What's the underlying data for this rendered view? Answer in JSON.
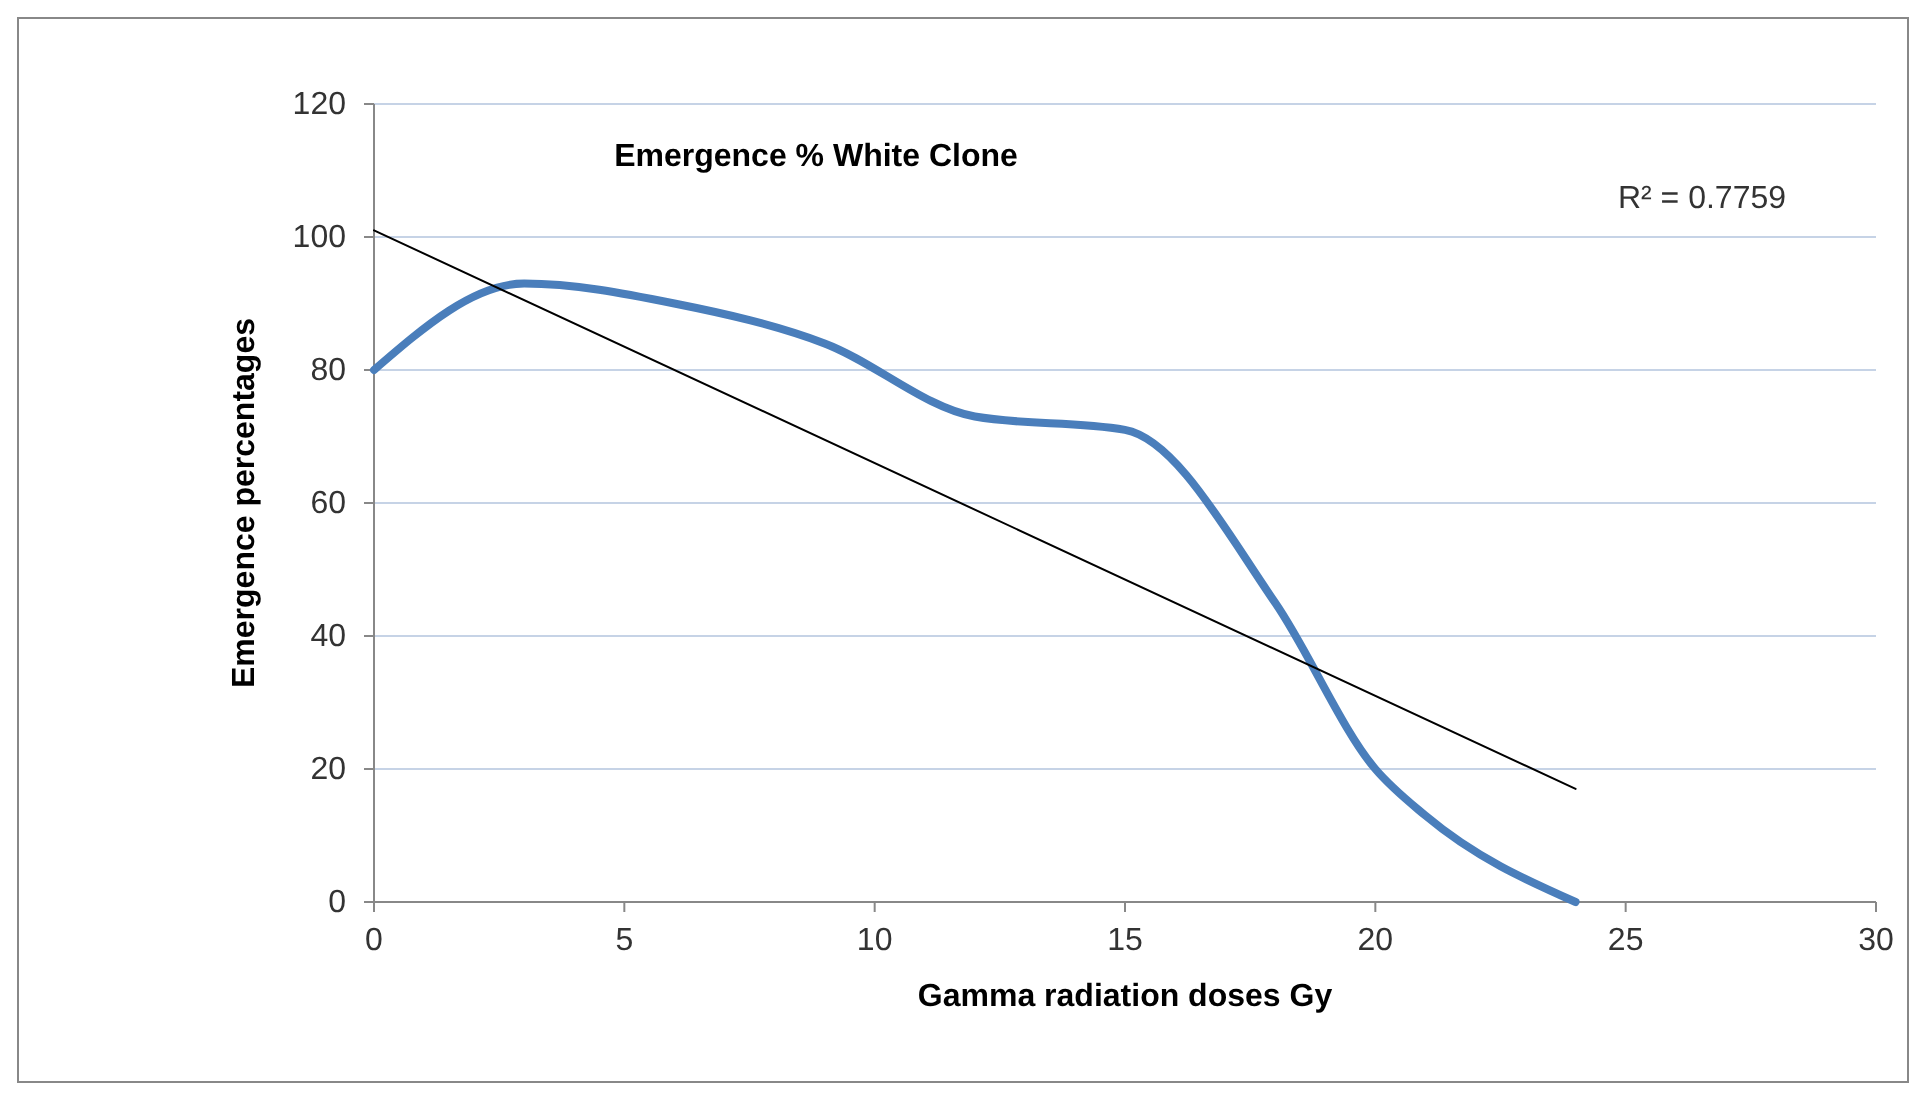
{
  "chart_data": {
    "type": "line",
    "title": "Emergence % White Clone",
    "xlabel": "Gamma radiation  doses Gy",
    "ylabel": "Emergence percentages",
    "x": [
      0,
      3,
      6,
      9,
      12,
      15,
      18,
      20,
      21,
      24
    ],
    "series": [
      {
        "color": "#4a7ebb",
        "values": [
          80,
          93,
          90,
          84,
          73,
          71,
          45,
          20,
          13,
          0
        ]
      },
      {
        "type": "line",
        "color": "#000000",
        "x": [
          0,
          24
        ],
        "values": [
          101,
          17
        ]
      }
    ],
    "xlim": [
      0,
      30
    ],
    "xticks": [
      0,
      5,
      10,
      15,
      20,
      25,
      30
    ],
    "ylim": [
      0,
      120
    ],
    "yticks": [
      0,
      20,
      40,
      60,
      80,
      100,
      120
    ],
    "grid": "y",
    "annotations": [
      "R² = 0.7759"
    ]
  }
}
